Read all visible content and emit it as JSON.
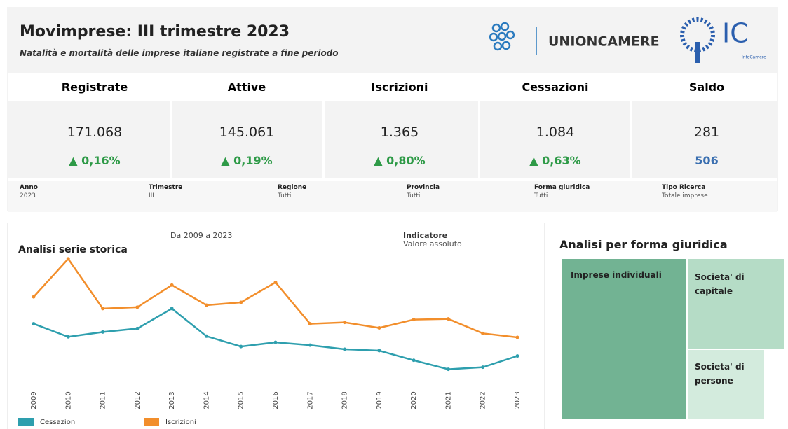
{
  "header": {
    "title": "Movimprese: III trimestre 2023",
    "subtitle": "Natalità e mortalità delle imprese italiane registrate a fine periodo"
  },
  "logos": {
    "unioncamere": "UNIONCAMERE",
    "ic": "IC",
    "infocamere": "InfoCamere"
  },
  "kpis": [
    {
      "label": "Registrate",
      "value": "171.068",
      "change": "0,16%"
    },
    {
      "label": "Attive",
      "value": "145.061",
      "change": "0,19%"
    },
    {
      "label": "Iscrizioni",
      "value": "1.365",
      "change": "0,80%"
    },
    {
      "label": "Cessazioni",
      "value": "1.084",
      "change": "0,63%"
    },
    {
      "label": "Saldo",
      "value": "281",
      "change": "506"
    }
  ],
  "filters": [
    {
      "label": "Anno",
      "value": "2023"
    },
    {
      "label": "Trimestre",
      "value": "III"
    },
    {
      "label": "Regione",
      "value": "Tutti"
    },
    {
      "label": "Provincia",
      "value": "Tutti"
    },
    {
      "label": "Forma giuridica",
      "value": "Tutti"
    },
    {
      "label": "Tipo Ricerca",
      "value": "Totale imprese"
    }
  ],
  "series_panel": {
    "range_label": "Da 2009 a 2023",
    "indicator_label": "Indicatore",
    "indicator_value": "Valore assoluto"
  },
  "chart_data": {
    "type": "line",
    "title": "Analisi serie storica",
    "x": [
      2009,
      2010,
      2011,
      2012,
      2013,
      2014,
      2015,
      2016,
      2017,
      2018,
      2019,
      2020,
      2021,
      2022,
      2023
    ],
    "ylim": [
      700,
      2600
    ],
    "series": [
      {
        "name": "Cessazioni",
        "color": "#2e9fae",
        "values": [
          1570,
          1373,
          1446,
          1498,
          1799,
          1383,
          1227,
          1290,
          1248,
          1186,
          1165,
          1019,
          884,
          915,
          1084
        ]
      },
      {
        "name": "Iscrizioni",
        "color": "#f28e2b",
        "values": [
          1976,
          2548,
          1799,
          1820,
          2153,
          1851,
          1893,
          2194,
          1570,
          1591,
          1508,
          1633,
          1643,
          1425,
          1365
        ]
      }
    ]
  },
  "treemap": {
    "title": "Analisi per forma giuridica",
    "items": [
      "Imprese individuali",
      "Societa' di capitale",
      "Societa' di persone"
    ]
  }
}
